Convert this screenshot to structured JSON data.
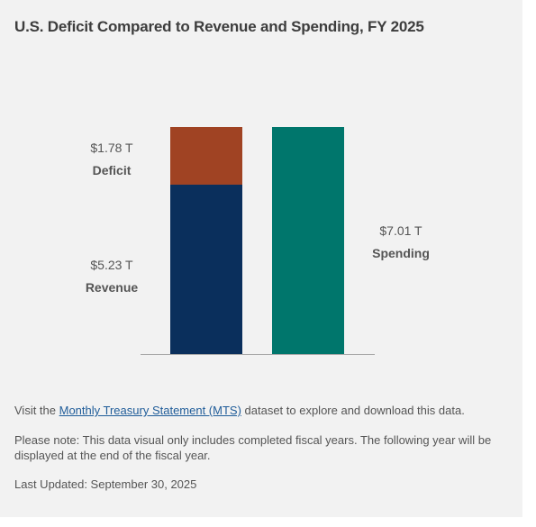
{
  "title": "U.S. Deficit Compared to Revenue and Spending, FY 2025",
  "chart_data": {
    "type": "bar",
    "stacked": true,
    "categories": [
      "Revenue + Deficit",
      "Spending"
    ],
    "series": [
      {
        "name": "Revenue",
        "values": [
          5.23,
          0
        ],
        "label": "$5.23 T",
        "color": "#0a2f5c"
      },
      {
        "name": "Deficit",
        "values": [
          1.78,
          0
        ],
        "label": "$1.78 T",
        "color": "#a04323"
      },
      {
        "name": "Spending",
        "values": [
          0,
          7.01
        ],
        "label": "$7.01 T",
        "color": "#00766c"
      }
    ],
    "unit": "T",
    "ylim": [
      0,
      7.01
    ],
    "grid": false,
    "legend": "none"
  },
  "notes": {
    "visit_prefix": "Visit the ",
    "visit_link": "Monthly Treasury Statement (MTS)",
    "visit_suffix": " dataset to explore and download this data.",
    "please": "Please note: This data visual only includes completed fiscal years. The following year will be displayed at the end of the fiscal year.",
    "updated": "Last Updated: September 30, 2025"
  }
}
